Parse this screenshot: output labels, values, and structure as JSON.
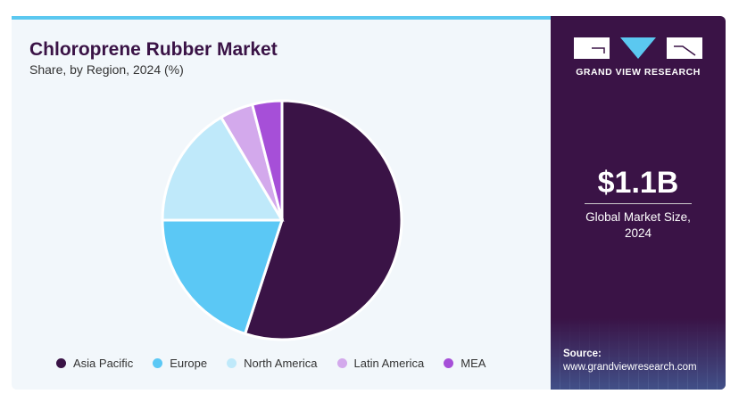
{
  "chart_data": {
    "type": "pie",
    "title": "Chloroprene Rubber Market",
    "subtitle": "Share, by Region, 2024 (%)",
    "categories": [
      "Asia Pacific",
      "Europe",
      "North America",
      "Latin America",
      "MEA"
    ],
    "values": [
      55,
      20,
      16.5,
      4.5,
      4
    ],
    "colors": [
      "#3a1346",
      "#5bc8f5",
      "#bfe9fa",
      "#d3a9ec",
      "#a64fd8"
    ],
    "legend_position": "bottom"
  },
  "side": {
    "brand": "GRAND VIEW RESEARCH",
    "market_size": "$1.1B",
    "caption_line1": "Global Market Size,",
    "caption_line2": "2024",
    "source_label": "Source:",
    "source_url": "www.grandviewresearch.com"
  }
}
